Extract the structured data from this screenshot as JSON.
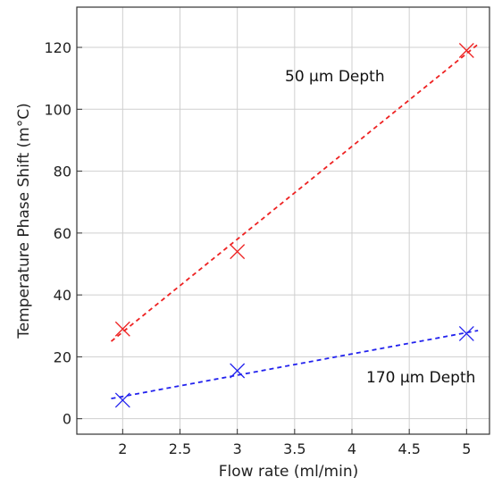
{
  "chart_data": {
    "type": "scatter",
    "xlabel": "Flow rate (ml/min)",
    "ylabel": "Temperature Phase Shift (m°C)",
    "xlim": [
      1.6,
      5.2
    ],
    "ylim": [
      -5,
      133
    ],
    "xticks": [
      "2",
      "2.5",
      "3",
      "3.5",
      "4",
      "4.5",
      "5"
    ],
    "yticks": [
      "0",
      "20",
      "40",
      "60",
      "80",
      "100",
      "120"
    ],
    "grid": true,
    "legend": "none",
    "annotations": [
      "50 µm Depth",
      "170 µm Depth"
    ],
    "series": [
      {
        "color": "#ee2222",
        "marker": "x",
        "points": [
          {
            "x": 2,
            "y": 29
          },
          {
            "x": 3,
            "y": 54
          },
          {
            "x": 5,
            "y": 119
          }
        ],
        "fit": {
          "x": [
            1.9,
            5.1
          ],
          "y": [
            25,
            121
          ],
          "style": "dashed"
        }
      },
      {
        "color": "#2222ee",
        "marker": "x",
        "points": [
          {
            "x": 2,
            "y": 6
          },
          {
            "x": 3,
            "y": 15.5
          },
          {
            "x": 5,
            "y": 27.5
          }
        ],
        "fit": {
          "x": [
            1.9,
            5.1
          ],
          "y": [
            6.5,
            28.5
          ],
          "style": "dashed"
        }
      }
    ]
  }
}
